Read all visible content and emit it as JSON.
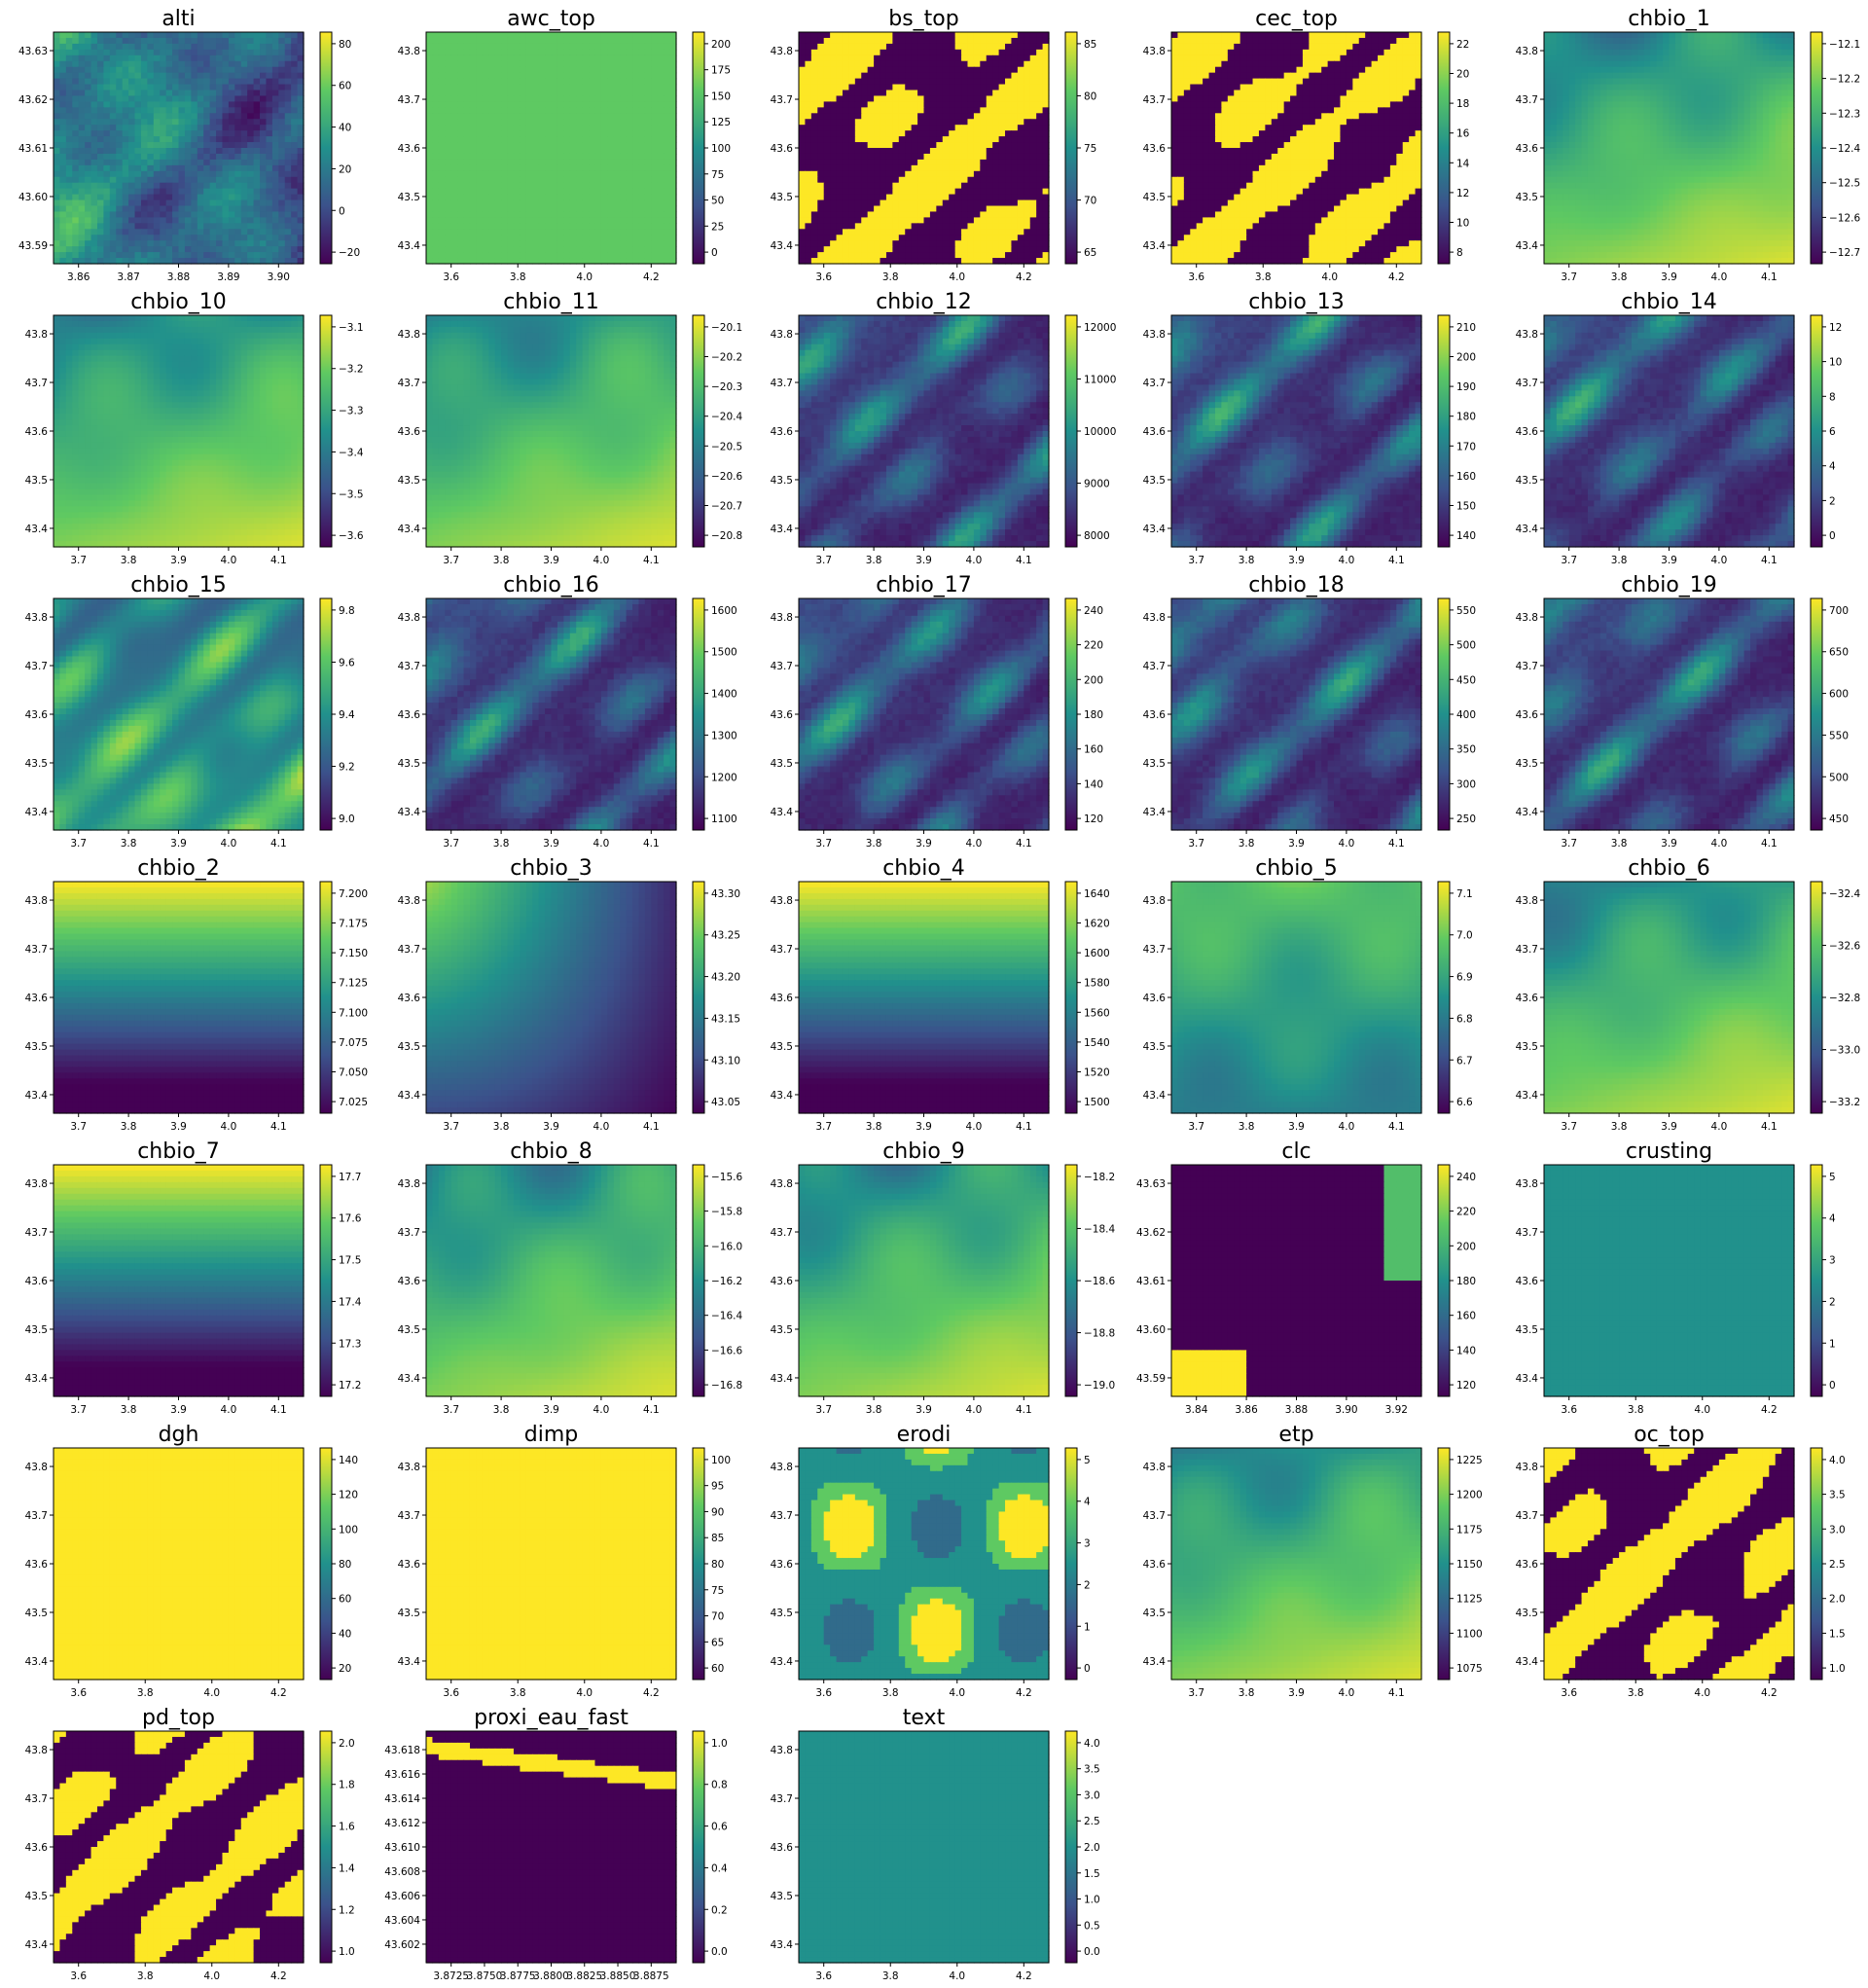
{
  "colormap": "viridis",
  "colors": {
    "viridis": [
      "#440154",
      "#3b528b",
      "#21918c",
      "#5ec962",
      "#fde725"
    ],
    "mask": "#ffffff",
    "axes": "#000000"
  },
  "chart_data": [
    {
      "type": "heatmap",
      "title": "alti",
      "pattern": "terrain",
      "x_ticks": [
        "3.86",
        "3.87",
        "3.88",
        "3.89",
        "3.90"
      ],
      "y_ticks": [
        "43.63",
        "43.62",
        "43.61",
        "43.60",
        "43.59"
      ],
      "colorbar_ticks": [
        "80",
        "60",
        "40",
        "20",
        "0",
        "−20"
      ]
    },
    {
      "type": "heatmap",
      "title": "awc_top",
      "pattern": "awc",
      "coastline": true,
      "x_ticks": [
        "3.6",
        "3.8",
        "4.0",
        "4.2"
      ],
      "y_ticks": [
        "43.8",
        "43.7",
        "43.6",
        "43.5",
        "43.4"
      ],
      "colorbar_ticks": [
        "200",
        "175",
        "150",
        "125",
        "100",
        "75",
        "50",
        "25",
        "0"
      ]
    },
    {
      "type": "heatmap",
      "title": "bs_top",
      "pattern": "blobs",
      "coastline": true,
      "x_ticks": [
        "3.6",
        "3.8",
        "4.0",
        "4.2"
      ],
      "y_ticks": [
        "43.8",
        "43.7",
        "43.6",
        "43.5",
        "43.4"
      ],
      "colorbar_ticks": [
        "85",
        "80",
        "75",
        "70",
        "65"
      ]
    },
    {
      "type": "heatmap",
      "title": "cec_top",
      "pattern": "blobs",
      "coastline": true,
      "x_ticks": [
        "3.6",
        "3.8",
        "4.0",
        "4.2"
      ],
      "y_ticks": [
        "43.8",
        "43.7",
        "43.6",
        "43.5",
        "43.4"
      ],
      "colorbar_ticks": [
        "22",
        "20",
        "18",
        "16",
        "14",
        "12",
        "10",
        "8"
      ]
    },
    {
      "type": "heatmap",
      "title": "chbio_1",
      "pattern": "warm",
      "coastline": true,
      "x_ticks": [
        "3.7",
        "3.8",
        "3.9",
        "4.0",
        "4.1"
      ],
      "y_ticks": [
        "43.8",
        "43.7",
        "43.6",
        "43.5",
        "43.4"
      ],
      "colorbar_ticks": [
        "−12.1",
        "−12.2",
        "−12.3",
        "−12.4",
        "−12.5",
        "−12.6",
        "−12.7"
      ]
    },
    {
      "type": "heatmap",
      "title": "chbio_10",
      "pattern": "warm",
      "coastline": true,
      "x_ticks": [
        "3.7",
        "3.8",
        "3.9",
        "4.0",
        "4.1"
      ],
      "y_ticks": [
        "43.8",
        "43.7",
        "43.6",
        "43.5",
        "43.4"
      ],
      "colorbar_ticks": [
        "−3.1",
        "−3.2",
        "−3.3",
        "−3.4",
        "−3.5",
        "−3.6"
      ]
    },
    {
      "type": "heatmap",
      "title": "chbio_11",
      "pattern": "warm",
      "coastline": true,
      "x_ticks": [
        "3.7",
        "3.8",
        "3.9",
        "4.0",
        "4.1"
      ],
      "y_ticks": [
        "43.8",
        "43.7",
        "43.6",
        "43.5",
        "43.4"
      ],
      "colorbar_ticks": [
        "−20.1",
        "−20.2",
        "−20.3",
        "−20.4",
        "−20.5",
        "−20.6",
        "−20.7",
        "−20.8"
      ]
    },
    {
      "type": "heatmap",
      "title": "chbio_12",
      "pattern": "dark",
      "coastline": true,
      "x_ticks": [
        "3.7",
        "3.8",
        "3.9",
        "4.0",
        "4.1"
      ],
      "y_ticks": [
        "43.8",
        "43.7",
        "43.6",
        "43.5",
        "43.4"
      ],
      "colorbar_ticks": [
        "12000",
        "11000",
        "10000",
        "9000",
        "8000"
      ]
    },
    {
      "type": "heatmap",
      "title": "chbio_13",
      "pattern": "dark",
      "coastline": true,
      "x_ticks": [
        "3.7",
        "3.8",
        "3.9",
        "4.0",
        "4.1"
      ],
      "y_ticks": [
        "43.8",
        "43.7",
        "43.6",
        "43.5",
        "43.4"
      ],
      "colorbar_ticks": [
        "210",
        "200",
        "190",
        "180",
        "170",
        "160",
        "150",
        "140"
      ]
    },
    {
      "type": "heatmap",
      "title": "chbio_14",
      "pattern": "dark",
      "coastline": true,
      "x_ticks": [
        "3.7",
        "3.8",
        "3.9",
        "4.0",
        "4.1"
      ],
      "y_ticks": [
        "43.8",
        "43.7",
        "43.6",
        "43.5",
        "43.4"
      ],
      "colorbar_ticks": [
        "12",
        "10",
        "8",
        "6",
        "4",
        "2",
        "0"
      ]
    },
    {
      "type": "heatmap",
      "title": "chbio_15",
      "pattern": "mixed",
      "coastline": true,
      "x_ticks": [
        "3.7",
        "3.8",
        "3.9",
        "4.0",
        "4.1"
      ],
      "y_ticks": [
        "43.8",
        "43.7",
        "43.6",
        "43.5",
        "43.4"
      ],
      "colorbar_ticks": [
        "9.8",
        "9.6",
        "9.4",
        "9.2",
        "9.0"
      ]
    },
    {
      "type": "heatmap",
      "title": "chbio_16",
      "pattern": "dark",
      "coastline": true,
      "x_ticks": [
        "3.7",
        "3.8",
        "3.9",
        "4.0",
        "4.1"
      ],
      "y_ticks": [
        "43.8",
        "43.7",
        "43.6",
        "43.5",
        "43.4"
      ],
      "colorbar_ticks": [
        "1600",
        "1500",
        "1400",
        "1300",
        "1200",
        "1100"
      ]
    },
    {
      "type": "heatmap",
      "title": "chbio_17",
      "pattern": "dark",
      "coastline": true,
      "x_ticks": [
        "3.7",
        "3.8",
        "3.9",
        "4.0",
        "4.1"
      ],
      "y_ticks": [
        "43.8",
        "43.7",
        "43.6",
        "43.5",
        "43.4"
      ],
      "colorbar_ticks": [
        "240",
        "220",
        "200",
        "180",
        "160",
        "140",
        "120"
      ]
    },
    {
      "type": "heatmap",
      "title": "chbio_18",
      "pattern": "dark",
      "coastline": true,
      "x_ticks": [
        "3.7",
        "3.8",
        "3.9",
        "4.0",
        "4.1"
      ],
      "y_ticks": [
        "43.8",
        "43.7",
        "43.6",
        "43.5",
        "43.4"
      ],
      "colorbar_ticks": [
        "550",
        "500",
        "450",
        "400",
        "350",
        "300",
        "250"
      ]
    },
    {
      "type": "heatmap",
      "title": "chbio_19",
      "pattern": "dark",
      "coastline": true,
      "x_ticks": [
        "3.7",
        "3.8",
        "3.9",
        "4.0",
        "4.1"
      ],
      "y_ticks": [
        "43.8",
        "43.7",
        "43.6",
        "43.5",
        "43.4"
      ],
      "colorbar_ticks": [
        "700",
        "650",
        "600",
        "550",
        "500",
        "450"
      ]
    },
    {
      "type": "heatmap",
      "title": "chbio_2",
      "pattern": "gradient_down",
      "coastline": true,
      "x_ticks": [
        "3.7",
        "3.8",
        "3.9",
        "4.0",
        "4.1"
      ],
      "y_ticks": [
        "43.8",
        "43.7",
        "43.6",
        "43.5",
        "43.4"
      ],
      "colorbar_ticks": [
        "7.200",
        "7.175",
        "7.150",
        "7.125",
        "7.100",
        "7.075",
        "7.050",
        "7.025"
      ]
    },
    {
      "type": "heatmap",
      "title": "chbio_3",
      "pattern": "gradient_corner",
      "coastline": true,
      "x_ticks": [
        "3.7",
        "3.8",
        "3.9",
        "4.0",
        "4.1"
      ],
      "y_ticks": [
        "43.8",
        "43.7",
        "43.6",
        "43.5",
        "43.4"
      ],
      "colorbar_ticks": [
        "43.30",
        "43.25",
        "43.20",
        "43.15",
        "43.10",
        "43.05"
      ]
    },
    {
      "type": "heatmap",
      "title": "chbio_4",
      "pattern": "gradient_down",
      "coastline": true,
      "x_ticks": [
        "3.7",
        "3.8",
        "3.9",
        "4.0",
        "4.1"
      ],
      "y_ticks": [
        "43.8",
        "43.7",
        "43.6",
        "43.5",
        "43.4"
      ],
      "colorbar_ticks": [
        "1640",
        "1620",
        "1600",
        "1580",
        "1560",
        "1540",
        "1520",
        "1500"
      ]
    },
    {
      "type": "heatmap",
      "title": "chbio_5",
      "pattern": "mid",
      "coastline": true,
      "x_ticks": [
        "3.7",
        "3.8",
        "3.9",
        "4.0",
        "4.1"
      ],
      "y_ticks": [
        "43.8",
        "43.7",
        "43.6",
        "43.5",
        "43.4"
      ],
      "colorbar_ticks": [
        "7.1",
        "7.0",
        "6.9",
        "6.8",
        "6.7",
        "6.6"
      ]
    },
    {
      "type": "heatmap",
      "title": "chbio_6",
      "pattern": "warm",
      "coastline": true,
      "x_ticks": [
        "3.7",
        "3.8",
        "3.9",
        "4.0",
        "4.1"
      ],
      "y_ticks": [
        "43.8",
        "43.7",
        "43.6",
        "43.5",
        "43.4"
      ],
      "colorbar_ticks": [
        "−32.4",
        "−32.6",
        "−32.8",
        "−33.0",
        "−33.2"
      ]
    },
    {
      "type": "heatmap",
      "title": "chbio_7",
      "pattern": "gradient_down",
      "coastline": true,
      "x_ticks": [
        "3.7",
        "3.8",
        "3.9",
        "4.0",
        "4.1"
      ],
      "y_ticks": [
        "43.8",
        "43.7",
        "43.6",
        "43.5",
        "43.4"
      ],
      "colorbar_ticks": [
        "17.7",
        "17.6",
        "17.5",
        "17.4",
        "17.3",
        "17.2"
      ]
    },
    {
      "type": "heatmap",
      "title": "chbio_8",
      "pattern": "warm",
      "coastline": true,
      "x_ticks": [
        "3.7",
        "3.8",
        "3.9",
        "4.0",
        "4.1"
      ],
      "y_ticks": [
        "43.8",
        "43.7",
        "43.6",
        "43.5",
        "43.4"
      ],
      "colorbar_ticks": [
        "−15.6",
        "−15.8",
        "−16.0",
        "−16.2",
        "−16.4",
        "−16.6",
        "−16.8"
      ]
    },
    {
      "type": "heatmap",
      "title": "chbio_9",
      "pattern": "warm",
      "coastline": true,
      "x_ticks": [
        "3.7",
        "3.8",
        "3.9",
        "4.0",
        "4.1"
      ],
      "y_ticks": [
        "43.8",
        "43.7",
        "43.6",
        "43.5",
        "43.4"
      ],
      "colorbar_ticks": [
        "−18.2",
        "−18.4",
        "−18.6",
        "−18.8",
        "−19.0"
      ]
    },
    {
      "type": "heatmap",
      "title": "clc",
      "pattern": "landcover",
      "x_ticks": [
        "3.84",
        "3.86",
        "3.88",
        "3.90",
        "3.92"
      ],
      "y_ticks": [
        "43.63",
        "43.62",
        "43.61",
        "43.60",
        "43.59"
      ],
      "colorbar_ticks": [
        "240",
        "220",
        "200",
        "180",
        "160",
        "140",
        "120"
      ]
    },
    {
      "type": "heatmap",
      "title": "crusting",
      "pattern": "crusting",
      "coastline": true,
      "x_ticks": [
        "3.6",
        "3.8",
        "4.0",
        "4.2"
      ],
      "y_ticks": [
        "43.8",
        "43.7",
        "43.6",
        "43.5",
        "43.4"
      ],
      "colorbar_ticks": [
        "5",
        "4",
        "3",
        "2",
        "1",
        "0"
      ]
    },
    {
      "type": "heatmap",
      "title": "dgh",
      "pattern": "uniform_high",
      "coastline": true,
      "x_ticks": [
        "3.6",
        "3.8",
        "4.0",
        "4.2"
      ],
      "y_ticks": [
        "43.8",
        "43.7",
        "43.6",
        "43.5",
        "43.4"
      ],
      "colorbar_ticks": [
        "140",
        "120",
        "100",
        "80",
        "60",
        "40",
        "20"
      ]
    },
    {
      "type": "heatmap",
      "title": "dimp",
      "pattern": "uniform_high",
      "coastline": true,
      "x_ticks": [
        "3.6",
        "3.8",
        "4.0",
        "4.2"
      ],
      "y_ticks": [
        "43.8",
        "43.7",
        "43.6",
        "43.5",
        "43.4"
      ],
      "colorbar_ticks": [
        "100",
        "95",
        "90",
        "85",
        "80",
        "75",
        "70",
        "65",
        "60"
      ]
    },
    {
      "type": "heatmap",
      "title": "erodi",
      "pattern": "classes",
      "coastline": true,
      "x_ticks": [
        "3.6",
        "3.8",
        "4.0",
        "4.2"
      ],
      "y_ticks": [
        "43.8",
        "43.7",
        "43.6",
        "43.5",
        "43.4"
      ],
      "colorbar_ticks": [
        "5",
        "4",
        "3",
        "2",
        "1",
        "0"
      ]
    },
    {
      "type": "heatmap",
      "title": "etp",
      "pattern": "warm",
      "coastline": true,
      "x_ticks": [
        "3.7",
        "3.8",
        "3.9",
        "4.0",
        "4.1"
      ],
      "y_ticks": [
        "43.8",
        "43.7",
        "43.6",
        "43.5",
        "43.4"
      ],
      "colorbar_ticks": [
        "1225",
        "1200",
        "1175",
        "1150",
        "1125",
        "1100",
        "1075"
      ]
    },
    {
      "type": "heatmap",
      "title": "oc_top",
      "pattern": "blobs",
      "coastline": true,
      "x_ticks": [
        "3.6",
        "3.8",
        "4.0",
        "4.2"
      ],
      "y_ticks": [
        "43.8",
        "43.7",
        "43.6",
        "43.5",
        "43.4"
      ],
      "colorbar_ticks": [
        "4.0",
        "3.5",
        "3.0",
        "2.5",
        "2.0",
        "1.5",
        "1.0"
      ]
    },
    {
      "type": "heatmap",
      "title": "pd_top",
      "pattern": "blobs",
      "coastline": true,
      "x_ticks": [
        "3.6",
        "3.8",
        "4.0",
        "4.2"
      ],
      "y_ticks": [
        "43.8",
        "43.7",
        "43.6",
        "43.5",
        "43.4"
      ],
      "colorbar_ticks": [
        "2.0",
        "1.8",
        "1.6",
        "1.4",
        "1.2",
        "1.0"
      ]
    },
    {
      "type": "heatmap",
      "title": "proxi_eau_fast",
      "pattern": "river",
      "x_ticks": [
        "3.8725",
        "3.8750",
        "3.8775",
        "3.8800",
        "3.8825",
        "3.8850",
        "3.8875"
      ],
      "y_ticks": [
        "43.618",
        "43.616",
        "43.614",
        "43.612",
        "43.610",
        "43.608",
        "43.606",
        "43.604",
        "43.602"
      ],
      "colorbar_ticks": [
        "1.0",
        "0.8",
        "0.6",
        "0.4",
        "0.2",
        "0.0"
      ]
    },
    {
      "type": "heatmap",
      "title": "text",
      "pattern": "texture",
      "coastline": true,
      "x_ticks": [
        "3.6",
        "3.8",
        "4.0",
        "4.2"
      ],
      "y_ticks": [
        "43.8",
        "43.7",
        "43.6",
        "43.5",
        "43.4"
      ],
      "colorbar_ticks": [
        "4.0",
        "3.5",
        "3.0",
        "2.5",
        "2.0",
        "1.5",
        "1.0",
        "0.5",
        "0.0"
      ]
    }
  ]
}
